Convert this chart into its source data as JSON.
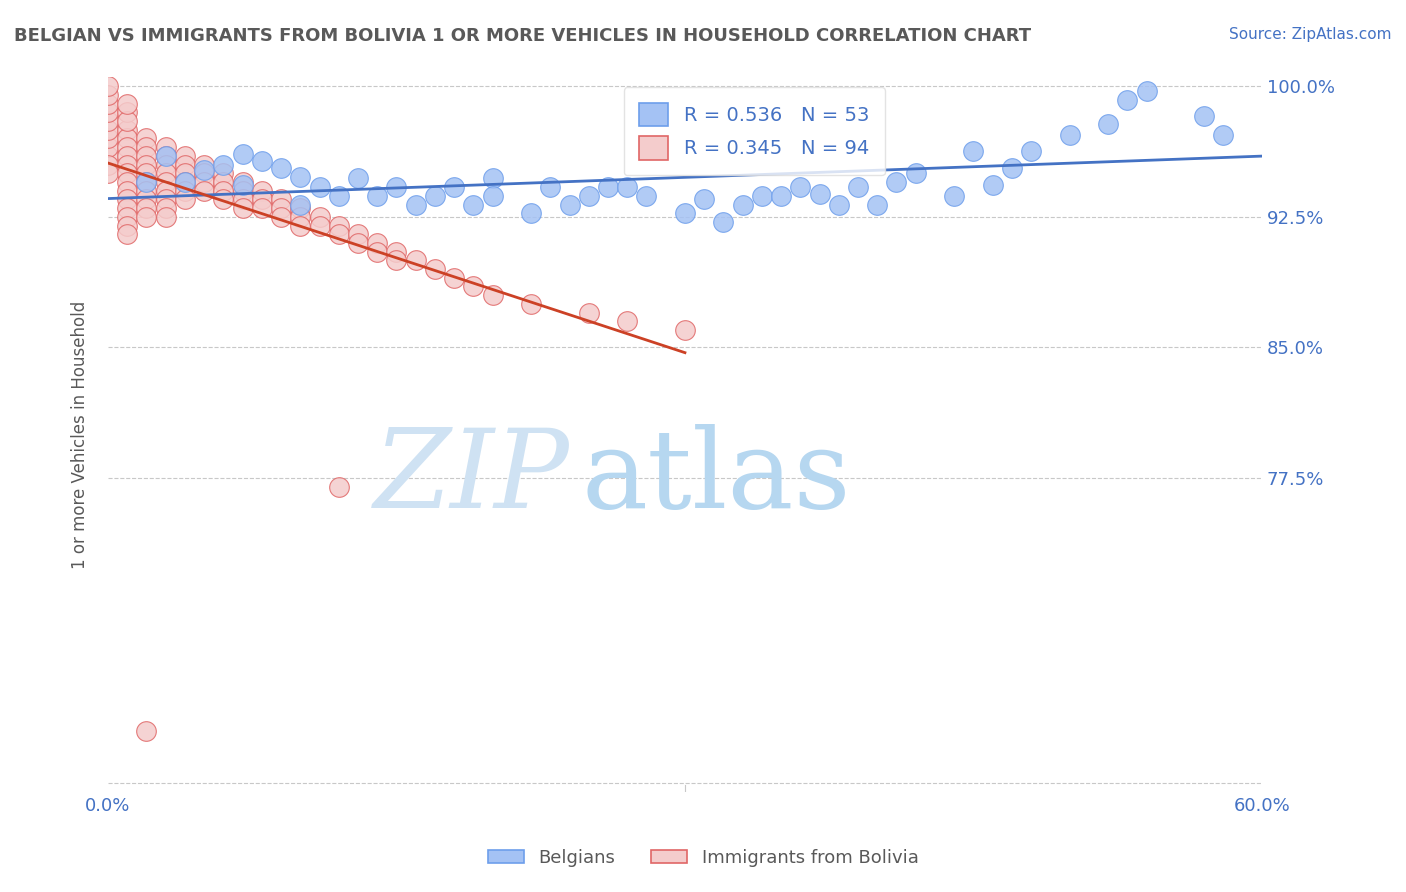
{
  "title": "BELGIAN VS IMMIGRANTS FROM BOLIVIA 1 OR MORE VEHICLES IN HOUSEHOLD CORRELATION CHART",
  "source": "Source: ZipAtlas.com",
  "xlabel": "",
  "ylabel": "1 or more Vehicles in Household",
  "xlim": [
    0.0,
    0.6
  ],
  "ylim": [
    0.595,
    1.005
  ],
  "xticks": [
    0.0,
    0.1,
    0.2,
    0.3,
    0.4,
    0.5,
    0.6
  ],
  "xticklabels": [
    "0.0%",
    "",
    "",
    "",
    "",
    "",
    "60.0%"
  ],
  "legend_blue_r": "R = 0.536",
  "legend_blue_n": "N = 53",
  "legend_pink_r": "R = 0.345",
  "legend_pink_n": "N = 94",
  "legend_label_blue": "Belgians",
  "legend_label_pink": "Immigrants from Bolivia",
  "blue_color": "#a4c2f4",
  "pink_color": "#f4cccc",
  "blue_edge_color": "#6d9eeb",
  "pink_edge_color": "#e06666",
  "blue_line_color": "#4472c4",
  "pink_line_color": "#cc4125",
  "title_color": "#595959",
  "source_color": "#4472c4",
  "axis_label_color": "#595959",
  "tick_color": "#4472c4",
  "watermark_zip_color": "#cfe2f3",
  "watermark_atlas_color": "#b6d7f0",
  "blue_scatter_x": [
    0.02,
    0.03,
    0.04,
    0.05,
    0.06,
    0.07,
    0.07,
    0.08,
    0.09,
    0.1,
    0.1,
    0.11,
    0.12,
    0.13,
    0.14,
    0.15,
    0.16,
    0.17,
    0.18,
    0.19,
    0.2,
    0.2,
    0.22,
    0.23,
    0.24,
    0.25,
    0.26,
    0.27,
    0.28,
    0.3,
    0.31,
    0.32,
    0.33,
    0.34,
    0.35,
    0.36,
    0.37,
    0.38,
    0.39,
    0.4,
    0.41,
    0.42,
    0.44,
    0.45,
    0.46,
    0.47,
    0.48,
    0.5,
    0.52,
    0.53,
    0.54,
    0.57,
    0.58
  ],
  "blue_scatter_y": [
    0.945,
    0.96,
    0.945,
    0.952,
    0.955,
    0.943,
    0.961,
    0.957,
    0.953,
    0.932,
    0.948,
    0.942,
    0.937,
    0.947,
    0.937,
    0.942,
    0.932,
    0.937,
    0.942,
    0.932,
    0.947,
    0.937,
    0.927,
    0.942,
    0.932,
    0.937,
    0.942,
    0.942,
    0.937,
    0.927,
    0.935,
    0.922,
    0.932,
    0.937,
    0.937,
    0.942,
    0.938,
    0.932,
    0.942,
    0.932,
    0.945,
    0.95,
    0.937,
    0.963,
    0.943,
    0.953,
    0.963,
    0.972,
    0.978,
    0.992,
    0.997,
    0.983,
    0.972
  ],
  "pink_scatter_x": [
    0.0,
    0.0,
    0.0,
    0.0,
    0.0,
    0.0,
    0.0,
    0.0,
    0.0,
    0.0,
    0.0,
    0.01,
    0.01,
    0.01,
    0.01,
    0.01,
    0.01,
    0.01,
    0.01,
    0.01,
    0.01,
    0.01,
    0.01,
    0.01,
    0.01,
    0.01,
    0.01,
    0.02,
    0.02,
    0.02,
    0.02,
    0.02,
    0.02,
    0.02,
    0.02,
    0.02,
    0.02,
    0.03,
    0.03,
    0.03,
    0.03,
    0.03,
    0.03,
    0.03,
    0.03,
    0.03,
    0.04,
    0.04,
    0.04,
    0.04,
    0.04,
    0.04,
    0.05,
    0.05,
    0.05,
    0.05,
    0.06,
    0.06,
    0.06,
    0.06,
    0.07,
    0.07,
    0.07,
    0.07,
    0.08,
    0.08,
    0.08,
    0.09,
    0.09,
    0.09,
    0.1,
    0.1,
    0.1,
    0.11,
    0.11,
    0.12,
    0.12,
    0.13,
    0.13,
    0.14,
    0.14,
    0.15,
    0.15,
    0.16,
    0.17,
    0.18,
    0.19,
    0.2,
    0.22,
    0.25,
    0.27,
    0.3,
    0.02,
    0.12
  ],
  "pink_scatter_y": [
    0.96,
    0.965,
    0.97,
    0.975,
    0.98,
    0.985,
    0.99,
    0.995,
    1.0,
    0.955,
    0.95,
    0.975,
    0.97,
    0.965,
    0.96,
    0.955,
    0.95,
    0.945,
    0.985,
    0.98,
    0.99,
    0.94,
    0.935,
    0.93,
    0.925,
    0.92,
    0.915,
    0.97,
    0.965,
    0.96,
    0.955,
    0.95,
    0.945,
    0.94,
    0.935,
    0.93,
    0.925,
    0.965,
    0.96,
    0.955,
    0.95,
    0.945,
    0.94,
    0.935,
    0.93,
    0.925,
    0.96,
    0.955,
    0.95,
    0.945,
    0.94,
    0.935,
    0.955,
    0.95,
    0.945,
    0.94,
    0.95,
    0.945,
    0.94,
    0.935,
    0.945,
    0.94,
    0.935,
    0.93,
    0.94,
    0.935,
    0.93,
    0.935,
    0.93,
    0.925,
    0.93,
    0.925,
    0.92,
    0.925,
    0.92,
    0.92,
    0.915,
    0.915,
    0.91,
    0.91,
    0.905,
    0.905,
    0.9,
    0.9,
    0.895,
    0.89,
    0.885,
    0.88,
    0.875,
    0.87,
    0.865,
    0.86,
    0.63,
    0.77
  ]
}
